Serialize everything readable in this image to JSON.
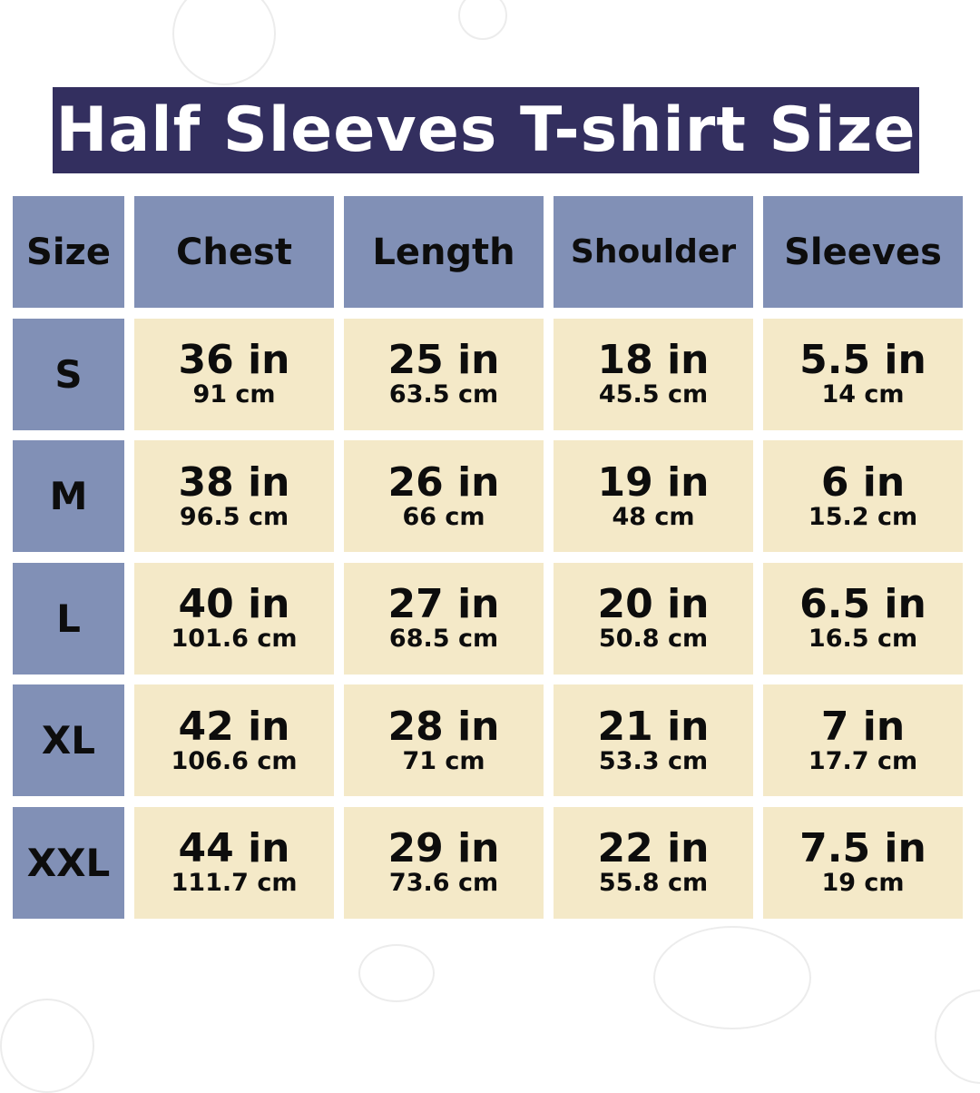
{
  "title": "Half Sleeves T-shirt Size",
  "colors": {
    "title_bg": "#332f5f",
    "header_bg": "#8190b6",
    "cell_bg": "#f4e9c8"
  },
  "table": {
    "headers": [
      "Size",
      "Chest",
      "Length",
      "Shoulder",
      "Sleeves"
    ],
    "rows": [
      {
        "size": "S",
        "cells": [
          {
            "in": "36 in",
            "cm": "91 cm"
          },
          {
            "in": "25 in",
            "cm": "63.5 cm"
          },
          {
            "in": "18 in",
            "cm": "45.5 cm"
          },
          {
            "in": "5.5 in",
            "cm": "14 cm"
          }
        ]
      },
      {
        "size": "M",
        "cells": [
          {
            "in": "38 in",
            "cm": "96.5 cm"
          },
          {
            "in": "26 in",
            "cm": "66 cm"
          },
          {
            "in": "19 in",
            "cm": "48 cm"
          },
          {
            "in": "6 in",
            "cm": "15.2 cm"
          }
        ]
      },
      {
        "size": "L",
        "cells": [
          {
            "in": "40 in",
            "cm": "101.6 cm"
          },
          {
            "in": "27 in",
            "cm": "68.5 cm"
          },
          {
            "in": "20 in",
            "cm": "50.8 cm"
          },
          {
            "in": "6.5 in",
            "cm": "16.5 cm"
          }
        ]
      },
      {
        "size": "XL",
        "cells": [
          {
            "in": "42 in",
            "cm": "106.6 cm"
          },
          {
            "in": "28 in",
            "cm": "71 cm"
          },
          {
            "in": "21 in",
            "cm": "53.3 cm"
          },
          {
            "in": "7 in",
            "cm": "17.7 cm"
          }
        ]
      },
      {
        "size": "XXL",
        "cells": [
          {
            "in": "44 in",
            "cm": "111.7 cm"
          },
          {
            "in": "29 in",
            "cm": "73.6 cm"
          },
          {
            "in": "22 in",
            "cm": "55.8 cm"
          },
          {
            "in": "7.5 in",
            "cm": "19 cm"
          }
        ]
      }
    ]
  }
}
